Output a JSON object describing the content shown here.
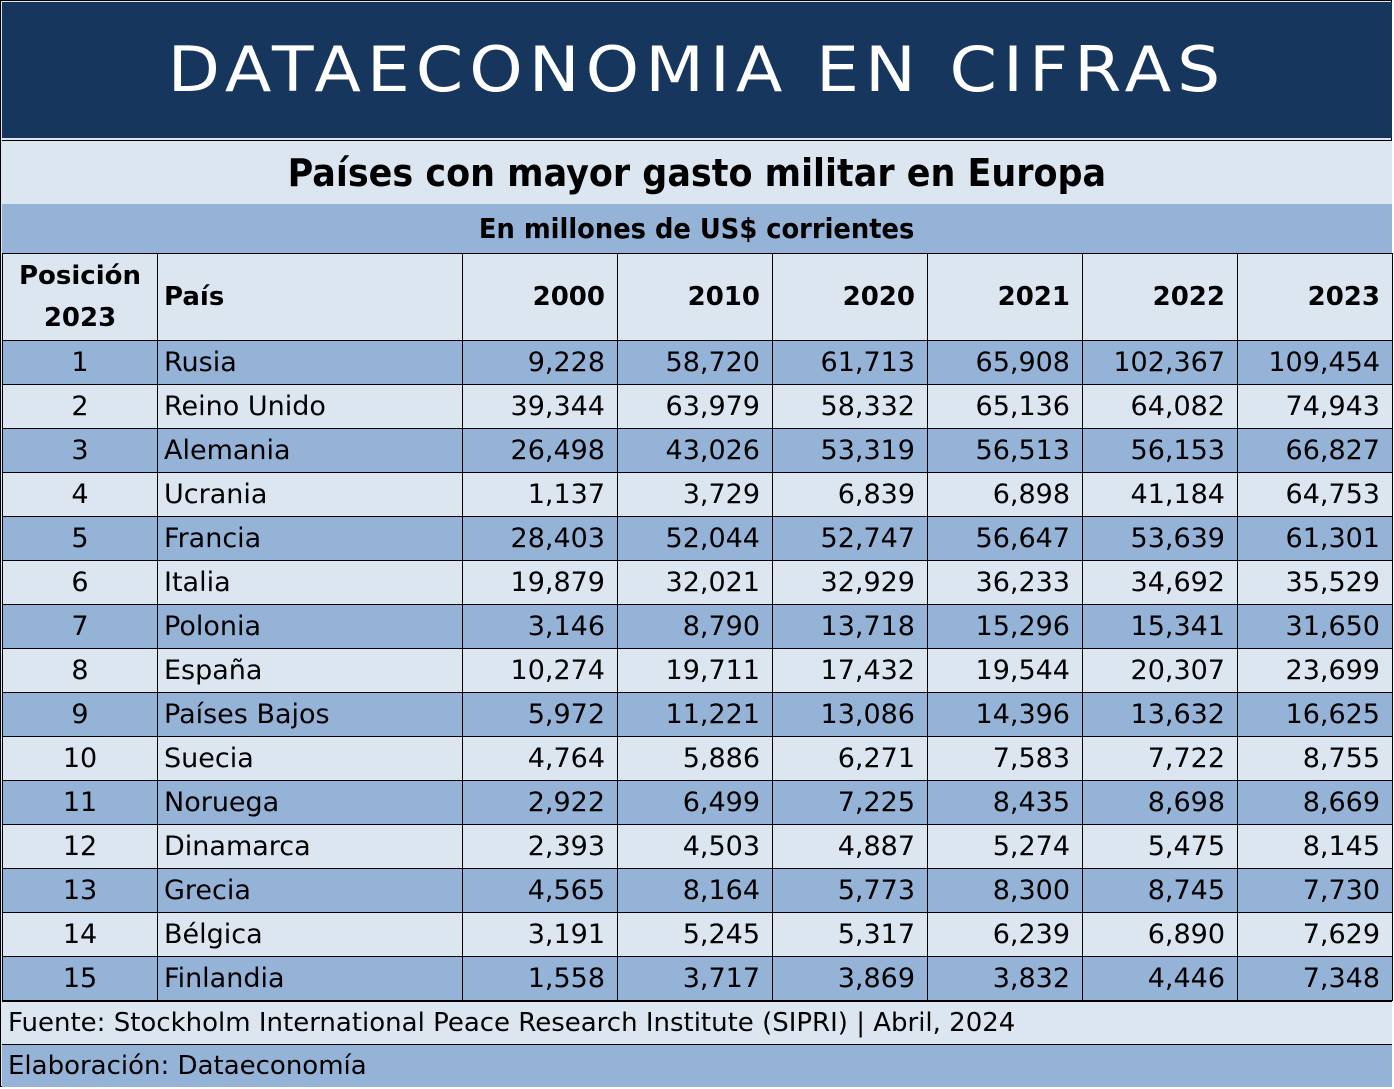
{
  "banner": "DATAECONOMIA EN CIFRAS",
  "title": "Países con mayor gasto militar en Europa",
  "subtitle": "En millones de US$ corrientes",
  "colors": {
    "banner_bg": "#17365d",
    "light_row": "#dce6f1",
    "dark_row": "#95b3d7"
  },
  "table": {
    "headers": {
      "position_line1": "Posición",
      "position_line2": "2023",
      "country": "País",
      "y2000": "2000",
      "y2010": "2010",
      "y2020": "2020",
      "y2021": "2021",
      "y2022": "2022",
      "y2023": "2023"
    },
    "rows": [
      {
        "pos": "1",
        "country": "Rusia",
        "v2000": "9,228",
        "v2010": "58,720",
        "v2020": "61,713",
        "v2021": "65,908",
        "v2022": "102,367",
        "v2023": "109,454"
      },
      {
        "pos": "2",
        "country": "Reino Unido",
        "v2000": "39,344",
        "v2010": "63,979",
        "v2020": "58,332",
        "v2021": "65,136",
        "v2022": "64,082",
        "v2023": "74,943"
      },
      {
        "pos": "3",
        "country": "Alemania",
        "v2000": "26,498",
        "v2010": "43,026",
        "v2020": "53,319",
        "v2021": "56,513",
        "v2022": "56,153",
        "v2023": "66,827"
      },
      {
        "pos": "4",
        "country": "Ucrania",
        "v2000": "1,137",
        "v2010": "3,729",
        "v2020": "6,839",
        "v2021": "6,898",
        "v2022": "41,184",
        "v2023": "64,753"
      },
      {
        "pos": "5",
        "country": "Francia",
        "v2000": "28,403",
        "v2010": "52,044",
        "v2020": "52,747",
        "v2021": "56,647",
        "v2022": "53,639",
        "v2023": "61,301"
      },
      {
        "pos": "6",
        "country": "Italia",
        "v2000": "19,879",
        "v2010": "32,021",
        "v2020": "32,929",
        "v2021": "36,233",
        "v2022": "34,692",
        "v2023": "35,529"
      },
      {
        "pos": "7",
        "country": "Polonia",
        "v2000": "3,146",
        "v2010": "8,790",
        "v2020": "13,718",
        "v2021": "15,296",
        "v2022": "15,341",
        "v2023": "31,650"
      },
      {
        "pos": "8",
        "country": "España",
        "v2000": "10,274",
        "v2010": "19,711",
        "v2020": "17,432",
        "v2021": "19,544",
        "v2022": "20,307",
        "v2023": "23,699"
      },
      {
        "pos": "9",
        "country": "Países Bajos",
        "v2000": "5,972",
        "v2010": "11,221",
        "v2020": "13,086",
        "v2021": "14,396",
        "v2022": "13,632",
        "v2023": "16,625"
      },
      {
        "pos": "10",
        "country": "Suecia",
        "v2000": "4,764",
        "v2010": "5,886",
        "v2020": "6,271",
        "v2021": "7,583",
        "v2022": "7,722",
        "v2023": "8,755"
      },
      {
        "pos": "11",
        "country": "Noruega",
        "v2000": "2,922",
        "v2010": "6,499",
        "v2020": "7,225",
        "v2021": "8,435",
        "v2022": "8,698",
        "v2023": "8,669"
      },
      {
        "pos": "12",
        "country": "Dinamarca",
        "v2000": "2,393",
        "v2010": "4,503",
        "v2020": "4,887",
        "v2021": "5,274",
        "v2022": "5,475",
        "v2023": "8,145"
      },
      {
        "pos": "13",
        "country": "Grecia",
        "v2000": "4,565",
        "v2010": "8,164",
        "v2020": "5,773",
        "v2021": "8,300",
        "v2022": "8,745",
        "v2023": "7,730"
      },
      {
        "pos": "14",
        "country": "Bélgica",
        "v2000": "3,191",
        "v2010": "5,245",
        "v2020": "5,317",
        "v2021": "6,239",
        "v2022": "6,890",
        "v2023": "7,629"
      },
      {
        "pos": "15",
        "country": "Finlandia",
        "v2000": "1,558",
        "v2010": "3,717",
        "v2020": "3,869",
        "v2021": "3,832",
        "v2022": "4,446",
        "v2023": "7,348"
      }
    ]
  },
  "footer": {
    "source": "Fuente: Stockholm International Peace Research Institute (SIPRI) | Abril, 2024",
    "credit": "Elaboración: Dataeconomía"
  }
}
